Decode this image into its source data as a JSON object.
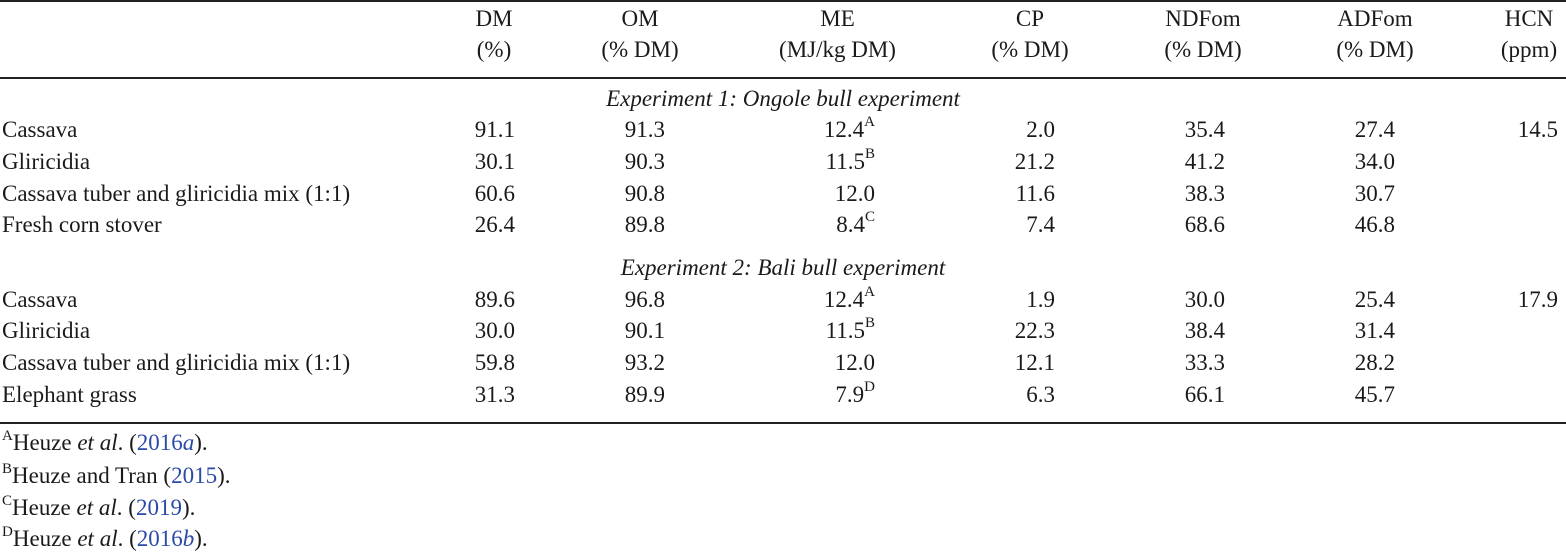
{
  "columns": [
    {
      "name": "DM",
      "unit": "(%)"
    },
    {
      "name": "OM",
      "unit": "(% DM)"
    },
    {
      "name": "ME",
      "unit": "(MJ/kg DM)"
    },
    {
      "name": "CP",
      "unit": "(% DM)"
    },
    {
      "name": "NDFom",
      "unit": "(% DM)"
    },
    {
      "name": "ADFom",
      "unit": "(% DM)"
    },
    {
      "name": "HCN",
      "unit": "(ppm)"
    }
  ],
  "sections": [
    {
      "title": "Experiment 1: Ongole bull experiment",
      "rows": [
        {
          "label": "Cassava",
          "dm": "91.1",
          "om": "91.3",
          "me": "12.4",
          "me_sup": "A",
          "cp": "2.0",
          "ndf": "35.4",
          "adf": "27.4",
          "hcn": "14.5"
        },
        {
          "label": "Gliricidia",
          "dm": "30.1",
          "om": "90.3",
          "me": "11.5",
          "me_sup": "B",
          "cp": "21.2",
          "ndf": "41.2",
          "adf": "34.0",
          "hcn": ""
        },
        {
          "label": "Cassava tuber and gliricidia mix (1:1)",
          "dm": "60.6",
          "om": "90.8",
          "me": "12.0",
          "me_sup": "",
          "cp": "11.6",
          "ndf": "38.3",
          "adf": "30.7",
          "hcn": ""
        },
        {
          "label": "Fresh corn stover",
          "dm": "26.4",
          "om": "89.8",
          "me": "8.4",
          "me_sup": "C",
          "cp": "7.4",
          "ndf": "68.6",
          "adf": "46.8",
          "hcn": ""
        }
      ]
    },
    {
      "title": "Experiment 2: Bali bull experiment",
      "rows": [
        {
          "label": "Cassava",
          "dm": "89.6",
          "om": "96.8",
          "me": "12.4",
          "me_sup": "A",
          "cp": "1.9",
          "ndf": "30.0",
          "adf": "25.4",
          "hcn": "17.9"
        },
        {
          "label": "Gliricidia",
          "dm": "30.0",
          "om": "90.1",
          "me": "11.5",
          "me_sup": "B",
          "cp": "22.3",
          "ndf": "38.4",
          "adf": "31.4",
          "hcn": ""
        },
        {
          "label": "Cassava tuber and gliricidia mix (1:1)",
          "dm": "59.8",
          "om": "93.2",
          "me": "12.0",
          "me_sup": "",
          "cp": "12.1",
          "ndf": "33.3",
          "adf": "28.2",
          "hcn": ""
        },
        {
          "label": "Elephant grass",
          "dm": "31.3",
          "om": "89.9",
          "me": "7.9",
          "me_sup": "D",
          "cp": "6.3",
          "ndf": "66.1",
          "adf": "45.7",
          "hcn": ""
        }
      ]
    }
  ],
  "footnotes": [
    {
      "sup": "A",
      "author": "Heuze",
      "etal": " et al",
      "mid": ". (",
      "year": "2016",
      "year_suffix": "a",
      "end": ")."
    },
    {
      "sup": "B",
      "author": "Heuze and Tran",
      "etal": "",
      "mid": " (",
      "year": "2015",
      "year_suffix": "",
      "end": ")."
    },
    {
      "sup": "C",
      "author": "Heuze",
      "etal": " et al",
      "mid": ". (",
      "year": "2019",
      "year_suffix": "",
      "end": ")."
    },
    {
      "sup": "D",
      "author": "Heuze",
      "etal": " et al",
      "mid": ". (",
      "year": "2016",
      "year_suffix": "b",
      "end": ")."
    }
  ]
}
